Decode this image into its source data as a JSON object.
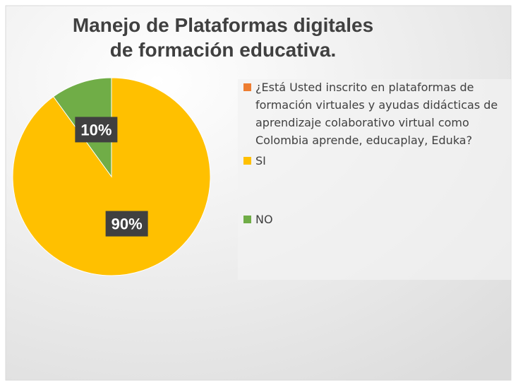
{
  "chart_data": {
    "type": "pie",
    "title": "Manejo de Plataformas digitales de formación educativa.",
    "categories": [
      "¿Está Usted inscrito en plataformas de formación virtuales y ayudas didácticas de aprendizaje colaborativo virtual como Colombia aprende, educaplay, Eduka?",
      "SI",
      "NO"
    ],
    "values": [
      0,
      90,
      10
    ],
    "value_labels": [
      null,
      "90%",
      "10%"
    ],
    "colors": [
      "#ed7d31",
      "#ffc000",
      "#70ad47"
    ],
    "legend": "right"
  }
}
